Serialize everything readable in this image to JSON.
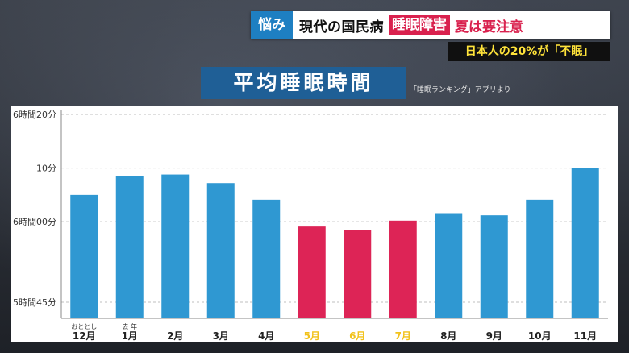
{
  "banner": {
    "tag": "悩み",
    "text": "現代の国民病",
    "highlight": "睡眠障害",
    "text2": "夏は要注意"
  },
  "subbanner": "日本人の20%が「不眠」",
  "chart_title": "平均睡眠時間",
  "source_note": "「睡眠ランキング」アプリより",
  "colors": {
    "normal": "#2f98d2",
    "highlight": "#dd2456",
    "highlight_label": "#f2c21b"
  },
  "chart_data": {
    "type": "bar",
    "title": "平均睡眠時間",
    "unit": "minutes",
    "categories": [
      "12月",
      "1月",
      "2月",
      "3月",
      "4月",
      "5月",
      "6月",
      "7月",
      "8月",
      "9月",
      "10月",
      "11月"
    ],
    "category_sublabels": [
      "おととし",
      "去 年",
      "",
      "",
      "",
      "",
      "",
      "",
      "",
      "",
      "",
      ""
    ],
    "values": [
      365,
      368.5,
      368.8,
      367.2,
      364.1,
      359.1,
      358.4,
      360.2,
      361.6,
      361.2,
      364.1,
      370
    ],
    "highlighted": [
      false,
      false,
      false,
      false,
      false,
      true,
      true,
      true,
      false,
      false,
      false,
      false
    ],
    "yticks": [
      {
        "value": 345,
        "label": "5時間45分"
      },
      {
        "value": 360,
        "label": "6時間00分"
      },
      {
        "value": 370,
        "label": "10分"
      },
      {
        "value": 380,
        "label": "6時間20分"
      }
    ],
    "ylim": [
      342,
      380
    ],
    "grid": true
  }
}
